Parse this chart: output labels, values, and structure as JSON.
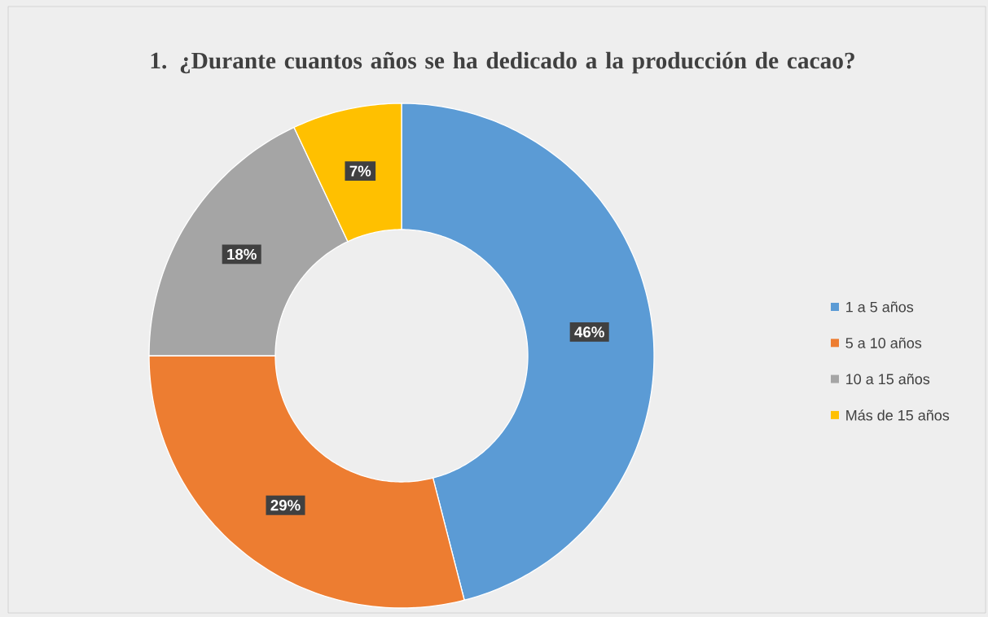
{
  "chart_data": {
    "type": "donut",
    "title": "1. ¿Durante cuantos años se ha dedicado a la producción de cacao?",
    "categories": [
      "1 a 5 años",
      "5 a 10 años",
      "10 a 15 años",
      "Más de 15 años"
    ],
    "values": [
      46,
      29,
      18,
      7
    ],
    "colors": [
      "#5b9bd5",
      "#ed7d31",
      "#a5a5a5",
      "#ffc000"
    ],
    "value_labels": [
      "46%",
      "29%",
      "18%",
      "7%"
    ],
    "legend": "right"
  }
}
